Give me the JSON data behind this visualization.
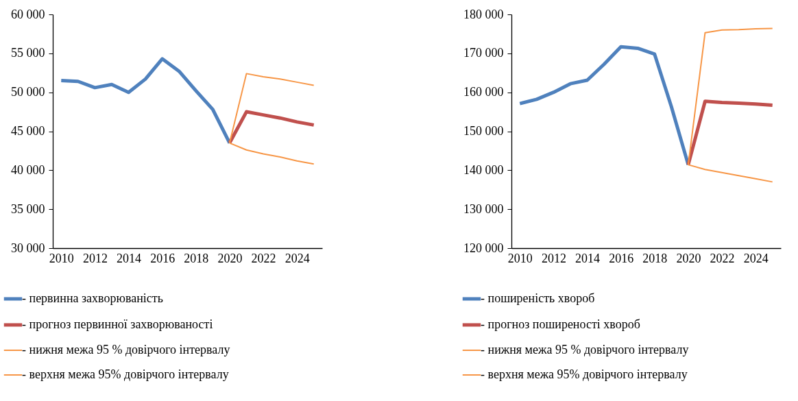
{
  "chart_data": [
    {
      "type": "line",
      "categories": [
        "2010",
        null,
        "2012",
        null,
        "2014",
        null,
        "2016",
        null,
        "2018",
        null,
        "2020",
        null,
        "2022",
        null,
        "2024",
        null
      ],
      "ylim": [
        30000,
        60000
      ],
      "yticks": [
        {
          "value": 30000,
          "label": "30 000"
        },
        {
          "value": 35000,
          "label": "35 000"
        },
        {
          "value": 40000,
          "label": "40 000"
        },
        {
          "value": 45000,
          "label": "45 000"
        },
        {
          "value": 50000,
          "label": "50 000"
        },
        {
          "value": 55000,
          "label": "55 000"
        },
        {
          "value": 60000,
          "label": "60 000"
        }
      ],
      "legend": "bottom",
      "series": [
        {
          "name": "- первинна захворюваність",
          "color": "#4f81bd",
          "values": [
            51500,
            51400,
            50600,
            51000,
            50000,
            51700,
            54300,
            52700,
            50200,
            47800,
            43500,
            null,
            null,
            null,
            null,
            null
          ]
        },
        {
          "name": "- прогноз первинної захворюваності",
          "color": "#c0504d",
          "values": [
            null,
            null,
            null,
            null,
            null,
            null,
            null,
            null,
            null,
            null,
            43500,
            47500,
            47100,
            46700,
            46200,
            45800
          ]
        },
        {
          "name": "- нижня межа 95 % довірчого інтервалу",
          "color": "#f79646",
          "values": [
            null,
            null,
            null,
            null,
            null,
            null,
            null,
            null,
            null,
            null,
            43500,
            42600,
            42100,
            41700,
            41200,
            40800
          ]
        },
        {
          "name": "- верхня межа 95% довірчого інтервалу",
          "color": "#f79646",
          "values": [
            null,
            null,
            null,
            null,
            null,
            null,
            null,
            null,
            null,
            null,
            43500,
            52400,
            52000,
            51700,
            51300,
            50900
          ]
        }
      ]
    },
    {
      "type": "line",
      "categories": [
        "2010",
        null,
        "2012",
        null,
        "2014",
        null,
        "2016",
        null,
        "2018",
        null,
        "2020",
        null,
        "2022",
        null,
        "2024",
        null
      ],
      "ylim": [
        120000,
        180000
      ],
      "yticks": [
        {
          "value": 120000,
          "label": "120 000"
        },
        {
          "value": 130000,
          "label": "130 000"
        },
        {
          "value": 140000,
          "label": "140 000"
        },
        {
          "value": 150000,
          "label": "150 000"
        },
        {
          "value": 160000,
          "label": "160 000"
        },
        {
          "value": 170000,
          "label": "170 000"
        },
        {
          "value": 180000,
          "label": "180 000"
        }
      ],
      "legend": "bottom",
      "series": [
        {
          "name": "- поширеність хвороб",
          "color": "#4f81bd",
          "values": [
            157100,
            158200,
            160000,
            162200,
            163100,
            167200,
            171700,
            171300,
            169800,
            156300,
            141400,
            null,
            null,
            null,
            null,
            null
          ]
        },
        {
          "name": "- прогноз поширеності хвороб",
          "color": "#c0504d",
          "values": [
            null,
            null,
            null,
            null,
            null,
            null,
            null,
            null,
            null,
            null,
            141400,
            157700,
            157400,
            157200,
            157000,
            156700
          ]
        },
        {
          "name": "- нижня межа 95 % довірчого інтервалу",
          "color": "#f79646",
          "values": [
            null,
            null,
            null,
            null,
            null,
            null,
            null,
            null,
            null,
            null,
            141400,
            140200,
            139400,
            138600,
            137800,
            137000
          ]
        },
        {
          "name": "- верхня межа 95% довірчого інтервалу",
          "color": "#f79646",
          "values": [
            null,
            null,
            null,
            null,
            null,
            null,
            null,
            null,
            null,
            null,
            141400,
            175300,
            176000,
            176100,
            176300,
            176400
          ]
        }
      ]
    }
  ]
}
